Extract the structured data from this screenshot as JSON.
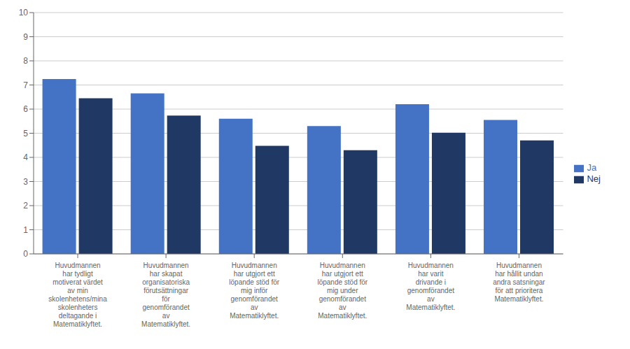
{
  "chart_data": {
    "type": "bar",
    "categories": [
      "Huvudmannen\nhar tydligt\nmotiverat värdet\nav min\nskolenhetens/mina\nskolenheters\ndeltagande i\nMatematiklyftet.",
      "Huvudmannen\nhar skapat\norganisatoriska\nförutsättningar\nför\ngenomförandet\nav\nMatematiklyftet.",
      "Huvudmannen\nhar utgjort ett\nlöpande stöd för\nmig inför\ngenomförandet\nav\nMatematiklyftet.",
      "Huvudmannen\nhar utgjort ett\nlöpande stöd för\nmig under\ngenomförandet\nav\nMatematiklyftet.",
      "Huvudmannen\nhar varit\ndrivande i\ngenomförandet\nav\nMatematiklyftet.",
      "Huvudmannen\nhar hållit undan\nandra satsningar\nför att prioritera\nMatematiklyftet."
    ],
    "series": [
      {
        "name": "Ja",
        "color": "#4472C4",
        "values": [
          7.25,
          6.65,
          5.6,
          5.3,
          6.2,
          5.55
        ]
      },
      {
        "name": "Nej",
        "color": "#1F3864",
        "values": [
          6.45,
          5.73,
          4.48,
          4.3,
          5.02,
          4.7
        ]
      }
    ],
    "ylim": [
      0,
      10
    ],
    "yticks": [
      0,
      1,
      2,
      3,
      4,
      5,
      6,
      7,
      8,
      9,
      10
    ],
    "grid": true,
    "legend": "right"
  }
}
